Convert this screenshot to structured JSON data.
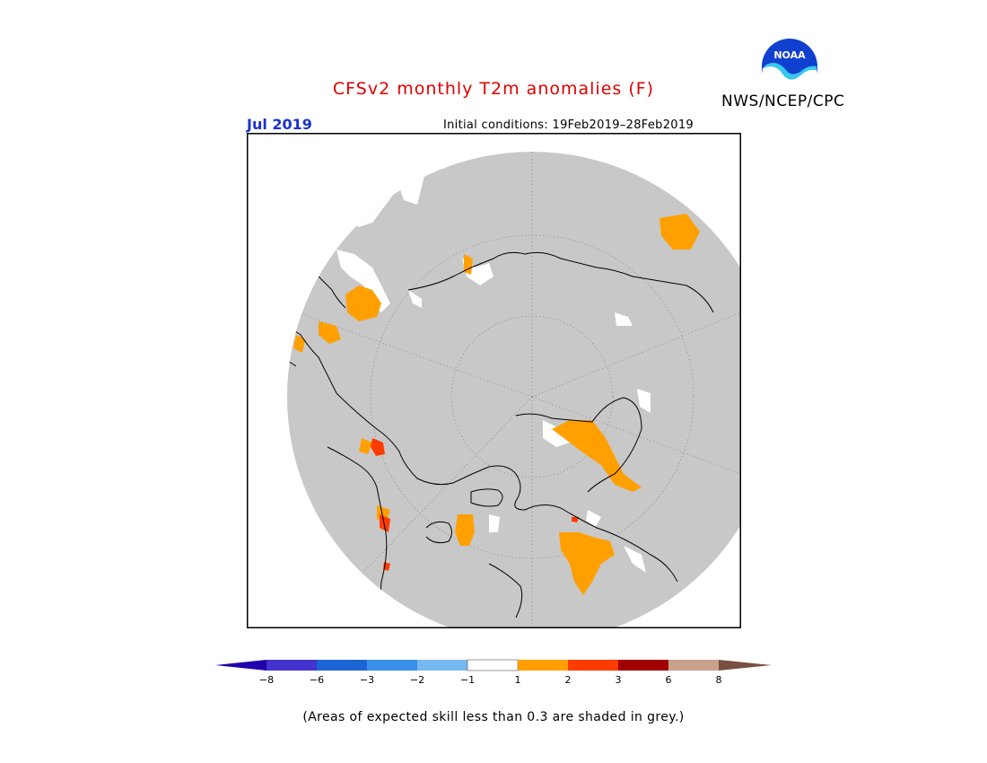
{
  "header": {
    "title": "CFSv2 monthly T2m anomalies (F)",
    "month": "Jul 2019",
    "initial_conditions": "Initial conditions: 19Feb2019–28Feb2019",
    "organization": "NWS/NCEP/CPC",
    "logo_text": "NOAA"
  },
  "map": {
    "projection": "north-polar-stereographic",
    "background_color": "#c8c8c8",
    "skill_mask_note": "grey"
  },
  "colorbar": {
    "colors": [
      "#2200aa",
      "#4433cc",
      "#1a64d4",
      "#3a8fe8",
      "#78b8f0",
      "#ffffff",
      "#ffa000",
      "#ff3c00",
      "#a00000",
      "#c8a08c",
      "#785040"
    ],
    "ticks": [
      "−8",
      "−6",
      "−3",
      "−2",
      "−1",
      "1",
      "2",
      "3",
      "6",
      "8"
    ]
  },
  "footnote": "(Areas of expected skill less than 0.3 are shaded in grey.)"
}
